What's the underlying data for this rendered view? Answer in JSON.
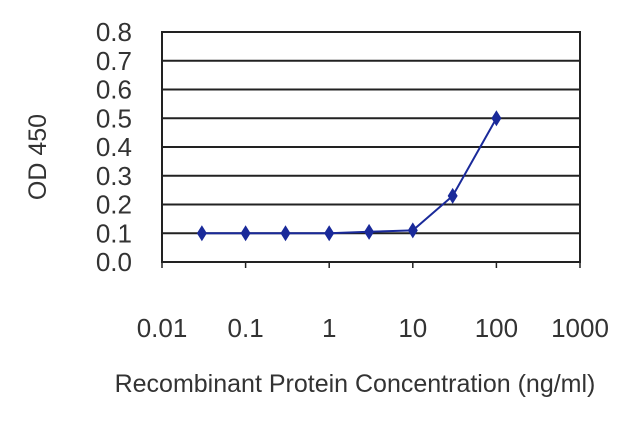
{
  "chart_data": {
    "type": "line",
    "title": "",
    "xlabel": "Recombinant Protein Concentration (ng/ml)",
    "ylabel": "OD 450",
    "x_scale": "log",
    "xlim": [
      0.01,
      1000
    ],
    "ylim": [
      0.0,
      0.8
    ],
    "x_ticks": [
      "0.01",
      "0.1",
      "1",
      "10",
      "100",
      "1000"
    ],
    "y_ticks": [
      "0.0",
      "0.1",
      "0.2",
      "0.3",
      "0.4",
      "0.5",
      "0.6",
      "0.7",
      "0.8"
    ],
    "grid": "horizontal",
    "series": [
      {
        "x": [
          0.03,
          0.1,
          0.3,
          1,
          3,
          10,
          30,
          100
        ],
        "y": [
          0.1,
          0.1,
          0.1,
          0.1,
          0.105,
          0.11,
          0.23,
          0.5
        ],
        "color": "#1a2a9a"
      }
    ],
    "colors": {
      "line": "#1a2a9a",
      "marker": "#1a2a9a",
      "grid": "#222222",
      "frame": "#222222"
    }
  }
}
